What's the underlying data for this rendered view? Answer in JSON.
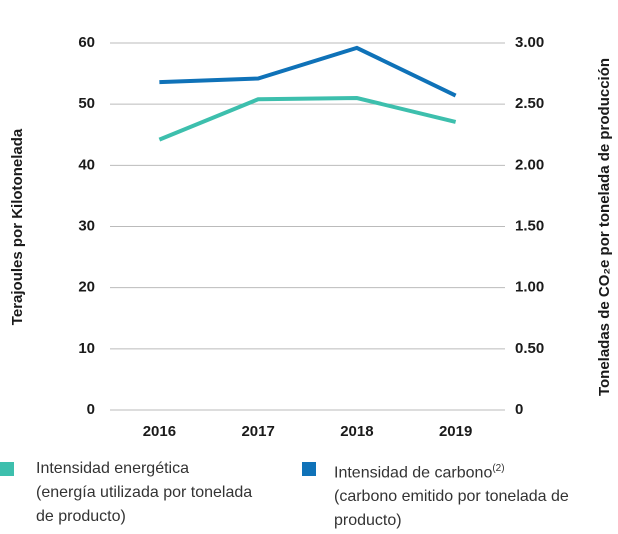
{
  "chart_data": {
    "type": "line",
    "categories": [
      "2016",
      "2017",
      "2018",
      "2019"
    ],
    "ylabel": "Terajoules por Kilotonelada",
    "y2label": "Toneladas de CO₂e por tonelada de producción",
    "ylim": [
      0,
      60
    ],
    "yticks": [
      0,
      10,
      20,
      30,
      40,
      50,
      60
    ],
    "y2lim": [
      0,
      3
    ],
    "y2ticks": [
      0,
      {
        "value": 0.5,
        "label": "0.50"
      },
      {
        "value": 1,
        "label": "1.00"
      },
      {
        "value": 1.5,
        "label": "1.50"
      },
      {
        "value": 2,
        "label": "2.00"
      },
      {
        "value": 2.5,
        "label": "2.50"
      },
      {
        "value": 3,
        "label": "3.00"
      }
    ],
    "grid": true,
    "series": [
      {
        "name": "Intensidad energética",
        "description": "(energía utilizada por tonelada de producto)",
        "color": "#3dbfad",
        "values": [
          44.2,
          50.8,
          51.0,
          47.1
        ]
      },
      {
        "name": "Intensidad de carbono",
        "footnote": "(2)",
        "description": "(carbono emitido por tonelada de producto)",
        "color": "#0f72b8",
        "axis": "y2",
        "values": [
          2.68,
          2.71,
          2.96,
          2.57
        ]
      }
    ]
  }
}
